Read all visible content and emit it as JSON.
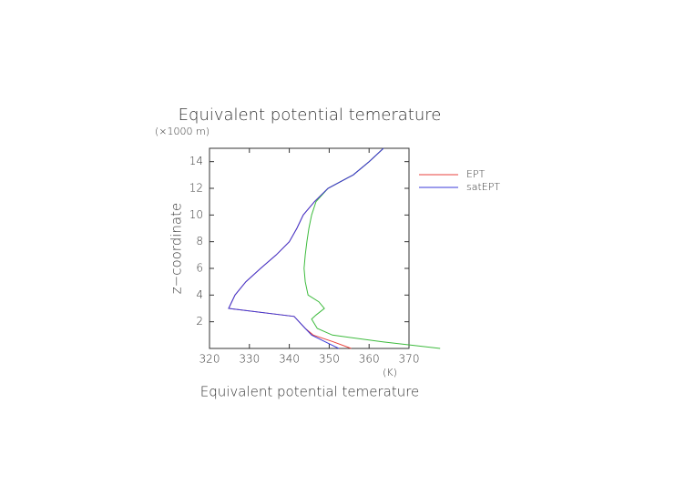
{
  "chart_data": {
    "type": "line",
    "title": "Equivalent potential temerature",
    "y_unit": "(×1000 m)",
    "y_label": "z−coordinate",
    "x_label": "Equivalent potential temerature",
    "x_unit": "(K)",
    "xlim": [
      320,
      370
    ],
    "xticks": [
      320,
      330,
      340,
      350,
      360,
      370
    ],
    "ylim": [
      0,
      15
    ],
    "yticks": [
      2,
      4,
      6,
      8,
      10,
      12,
      14
    ],
    "series": [
      {
        "name": "EPT",
        "color": "#e8413c",
        "x": [
          363.6,
          360,
          356,
          349.7,
          346.3,
          343.5,
          341.9,
          340,
          336.7,
          332.8,
          329.1,
          326.4,
          324.8,
          341.2,
          344,
          346,
          351,
          355.5
        ],
        "y": [
          15,
          14,
          13,
          12,
          11,
          10,
          9,
          8,
          7,
          6,
          5,
          4,
          3,
          2.4,
          1.5,
          1,
          0.5,
          0
        ]
      },
      {
        "color": "#3dbb3d",
        "x": [
          363.6,
          360,
          356,
          349.7,
          346.7,
          345.6,
          344.9,
          344.4,
          344,
          343.7,
          344,
          344.7,
          347.4,
          348.8,
          346.7,
          345.6,
          346,
          347,
          350.8,
          363.4,
          377.8
        ],
        "y": [
          15,
          14,
          13,
          12,
          11,
          10,
          9,
          8,
          7,
          6,
          5,
          4,
          3.5,
          3,
          2.5,
          2.2,
          2,
          1.5,
          1,
          0.5,
          0
        ]
      },
      {
        "name": "satEPT",
        "color": "#3a3ad8",
        "x": [
          363.6,
          360,
          356,
          349.7,
          346.3,
          343.5,
          341.9,
          340,
          336.7,
          332.8,
          329.1,
          326.4,
          324.8,
          341.2,
          344,
          345.6,
          349,
          352.4
        ],
        "y": [
          15,
          14,
          13,
          12,
          11,
          10,
          9,
          8,
          7,
          6,
          5,
          4,
          3,
          2.4,
          1.5,
          1,
          0.5,
          0
        ]
      }
    ]
  }
}
